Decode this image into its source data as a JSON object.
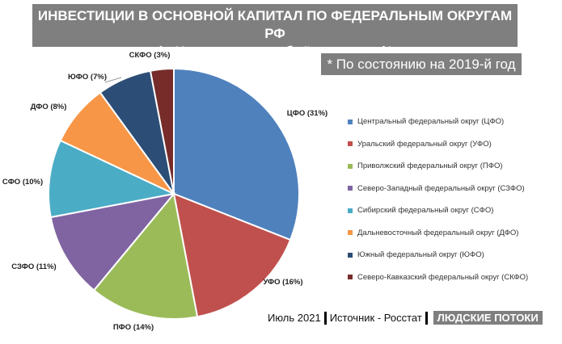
{
  "chart_data": {
    "type": "pie",
    "title": "ИНВЕСТИЦИИ В ОСНОВНОЙ КАПИТАЛ ПО ФЕДЕРАЛЬНЫМ ОКРУГАМ РФ",
    "subtitle": "(в % от валового объёма страны)*",
    "note": "* По состоянию на 2019-й год",
    "slices": [
      {
        "label": "ЦФО (31%)",
        "legend": "Центральный федеральный округ (ЦФО)",
        "value": 31,
        "color": "#4F81BD"
      },
      {
        "label": "УФО (16%)",
        "legend": "Уральский федеральный округ (УФО)",
        "value": 16,
        "color": "#C0504D"
      },
      {
        "label": "ПФО (14%)",
        "legend": "Приволжский федеральный округ (ПФО)",
        "value": 14,
        "color": "#9BBB59"
      },
      {
        "label": "СЗФО (11%)",
        "legend": "Северо-Западный федеральный округ (СЗФО)",
        "value": 11,
        "color": "#8064A2"
      },
      {
        "label": "СФО (10%)",
        "legend": "Сибирский федеральный округ (СФО)",
        "value": 10,
        "color": "#4BACC6"
      },
      {
        "label": "ДФО (8%)",
        "legend": "Дальневосточный федеральный округ (ДФО)",
        "value": 8,
        "color": "#F79646"
      },
      {
        "label": "ЮФО (7%)",
        "legend": "Южный федеральный округ (ЮФО)",
        "value": 7,
        "color": "#2C4D75"
      },
      {
        "label": "СКФО (3%)",
        "legend": "Северо-Кавказский федеральный округ (СКФО)",
        "value": 3,
        "color": "#772C2A"
      }
    ],
    "legend_position": "right"
  },
  "footer": {
    "date": "Июль 2021",
    "source": "Источник - Росстат",
    "brand": "ЛЮДСКИЕ ПОТОКИ"
  }
}
